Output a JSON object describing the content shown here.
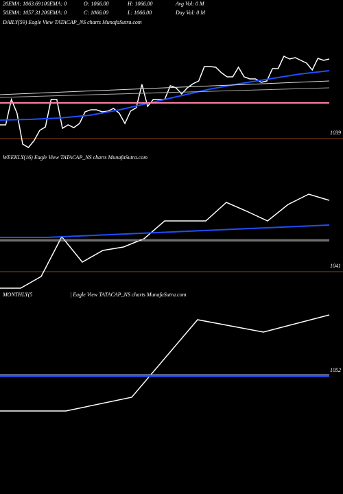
{
  "header": {
    "row1": [
      "20EMA: 1063.69",
      "100EMA: 0",
      "O: 1066.00",
      "H: 1066.00",
      "Avg Vol: 0  M"
    ],
    "row2": [
      "50EMA: 1057.31",
      "200EMA: 0",
      "C: 1066.00",
      "L: 1066.00",
      "Day Vol: 0  M"
    ]
  },
  "chart_data": [
    {
      "type": "line",
      "title": "DAILY(59) Eagle  View  TATACAP_NS  charts MunafaSutra.com",
      "ylim": [
        1035,
        1082
      ],
      "yticks": [
        1039
      ],
      "grid": true,
      "grid_color": "#8b4513",
      "series": [
        {
          "color": "#ffffff",
          "width": 1.5,
          "values": [
            1044,
            1044,
            1053.25,
            1048.25,
            1037,
            1035.75,
            1038.25,
            1042,
            1043.25,
            1053.25,
            1053.25,
            1042.75,
            1044,
            1043,
            1044.5,
            1048.75,
            1049.5,
            1049.5,
            1048.75,
            1049,
            1050,
            1048.25,
            1044.5,
            1049,
            1050.25,
            1058.75,
            1050.75,
            1053.25,
            1053.25,
            1053.25,
            1058.25,
            1057.5,
            1055.25,
            1057.5,
            1059,
            1060,
            1065.25,
            1065.25,
            1065,
            1063,
            1061.5,
            1061.5,
            1065,
            1061.5,
            1060.75,
            1060.75,
            1059.5,
            1060,
            1064.5,
            1064.5,
            1069,
            1068,
            1068.5,
            1067.5,
            1066.5,
            1064,
            1068.25,
            1067.5,
            1068
          ]
        },
        {
          "color": "#1e4fff",
          "width": 2,
          "values": [
            1045.75,
            1046,
            1046.5,
            1047.5,
            1049.5,
            1052,
            1054.5,
            1057,
            1059,
            1060.75,
            1062.5,
            1063.75
          ]
        },
        {
          "color": "#aaaaaa",
          "width": 1,
          "values": [
            1054,
            1057.5
          ]
        },
        {
          "color": "#dddddd",
          "width": 1,
          "values": [
            1055,
            1060
          ]
        },
        {
          "color": "#ff7fa8",
          "width": 2,
          "values": [
            1052,
            1052
          ]
        }
      ]
    },
    {
      "type": "line",
      "title": "WEEKLY(16) Eagle  View  TATACAP_NS  charts MunafaSutra.com",
      "ylim": [
        1035,
        1081
      ],
      "yticks": [
        1041
      ],
      "grid": true,
      "grid_color": "#8b4513",
      "series": [
        {
          "color": "#ffffff",
          "width": 1.5,
          "values": [
            1035,
            1035,
            1039.25,
            1053.75,
            1044.5,
            1048.75,
            1050,
            1053,
            1059.5,
            1059.5,
            1059.5,
            1066.25,
            1063,
            1059.5,
            1065.5,
            1069.25,
            1067
          ]
        },
        {
          "color": "#1e4fff",
          "width": 2,
          "values": [
            1053.5,
            1053.5,
            1054.25,
            1055,
            1055.75,
            1056.5,
            1057.25,
            1058
          ]
        },
        {
          "color": "#aaaaaa",
          "width": 1,
          "values": [
            1052.75,
            1052.75
          ]
        },
        {
          "color": "#dddddd",
          "width": 1,
          "values": [
            1052.25,
            1052.25
          ]
        }
      ]
    },
    {
      "type": "line",
      "title": "MONTHLY(5",
      "subtitle": "| Eagle  View  TATACAP_NS  charts MunafaSutra.com",
      "ylim": [
        1009,
        1083
      ],
      "yticks": [
        1052
      ],
      "grid": false,
      "series": [
        {
          "color": "#ffffff",
          "width": 1.5,
          "values": [
            1039.25,
            1039.25,
            1044.25,
            1072.5,
            1068,
            1074.25
          ]
        },
        {
          "color": "#1e4fff",
          "width": 3,
          "values": [
            1052,
            1052
          ]
        },
        {
          "color": "#aaaaaa",
          "width": 1,
          "values": [
            1052.5,
            1052.5
          ]
        }
      ]
    }
  ]
}
